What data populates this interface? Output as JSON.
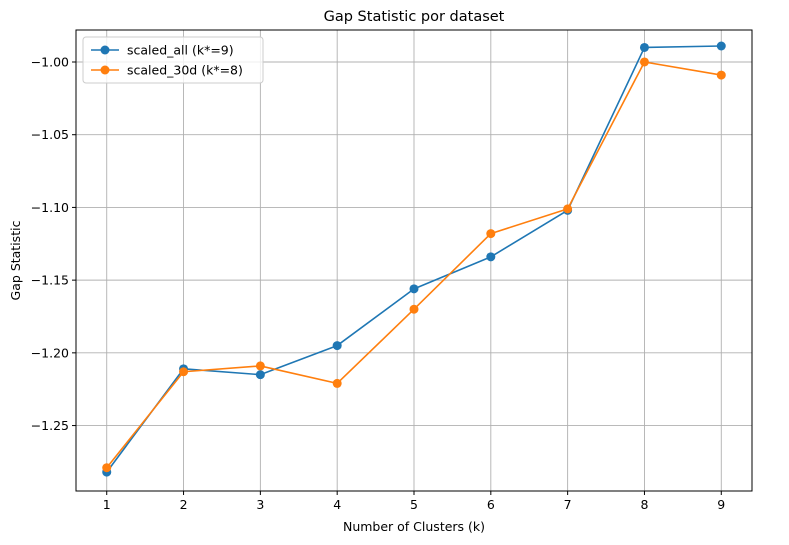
{
  "chart_data": {
    "type": "line",
    "title": "Gap Statistic por dataset",
    "xlabel": "Number of Clusters (k)",
    "ylabel": "Gap Statistic",
    "x": [
      1,
      2,
      3,
      4,
      5,
      6,
      7,
      8,
      9
    ],
    "xlim": [
      0.6,
      9.4
    ],
    "ylim": [
      -1.295,
      -0.978
    ],
    "yticks": [
      -1.25,
      -1.2,
      -1.15,
      -1.1,
      -1.05,
      -1.0
    ],
    "ytick_labels": [
      "−1.25",
      "−1.20",
      "−1.15",
      "−1.10",
      "−1.05",
      "−1.00"
    ],
    "grid": true,
    "legend_position": "top-left",
    "series": [
      {
        "name": "scaled_all (k*=9)",
        "color": "#1f77b4",
        "values": [
          -1.282,
          -1.211,
          -1.215,
          -1.195,
          -1.156,
          -1.134,
          -1.102,
          -0.99,
          -0.989
        ]
      },
      {
        "name": "scaled_30d (k*=8)",
        "color": "#ff7f0e",
        "values": [
          -1.279,
          -1.213,
          -1.209,
          -1.221,
          -1.17,
          -1.118,
          -1.101,
          -1.0,
          -1.009
        ]
      }
    ]
  }
}
